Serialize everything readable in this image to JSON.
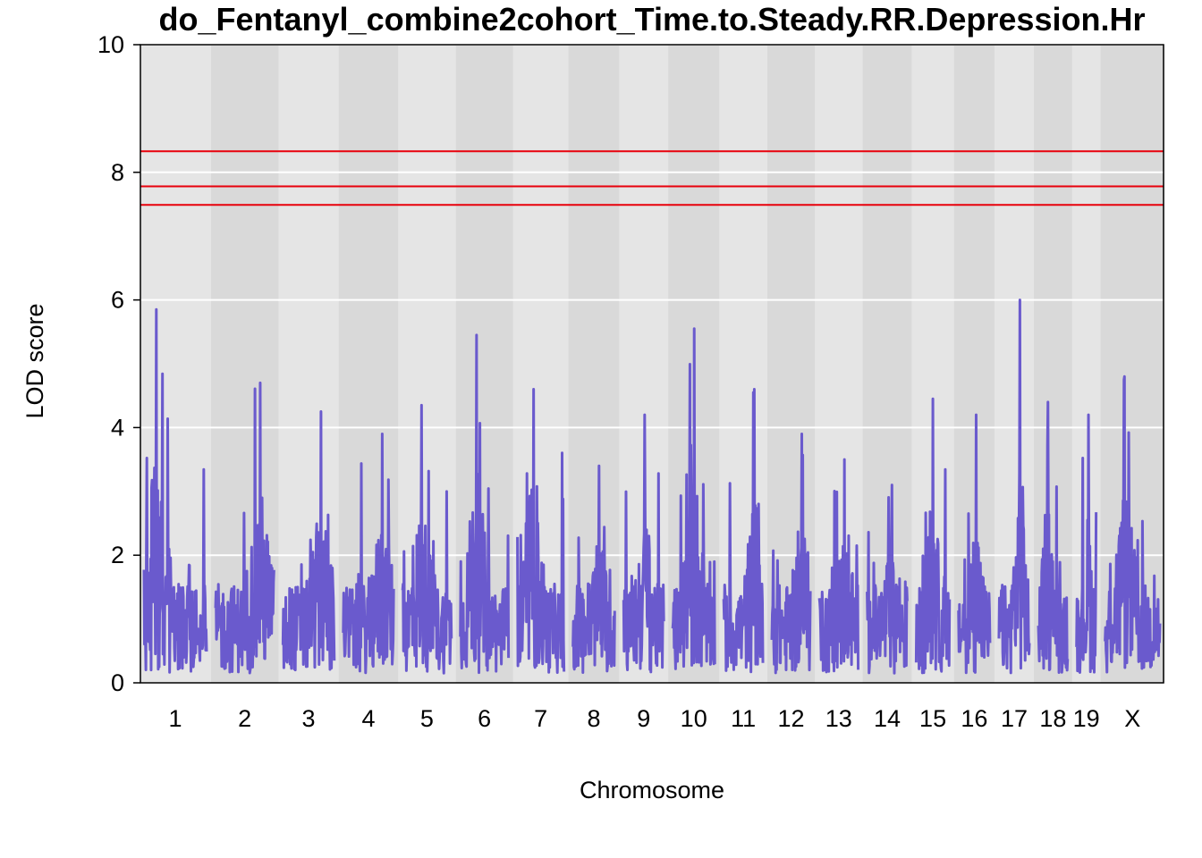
{
  "chart_data": {
    "type": "line",
    "title": "do_Fentanyl_combine2cohort_Time.to.Steady.RR.Depression.Hr",
    "xlabel": "Chromosome",
    "ylabel": "LOD score",
    "ylim": [
      0,
      10
    ],
    "yticks": [
      0,
      2,
      4,
      6,
      8,
      10
    ],
    "grid": true,
    "series_color": "#6A5ACD",
    "threshold_color": "#E8000B",
    "band_colors": [
      "#E5E5E5",
      "#D9D9D9"
    ],
    "thresholds": [
      8.33,
      7.78,
      7.49
    ],
    "chromosomes": [
      {
        "label": "1",
        "peak": 5.85,
        "length": 195
      },
      {
        "label": "2",
        "peak": 4.7,
        "length": 182
      },
      {
        "label": "3",
        "peak": 4.25,
        "length": 160
      },
      {
        "label": "4",
        "peak": 3.9,
        "length": 157
      },
      {
        "label": "5",
        "peak": 4.35,
        "length": 152
      },
      {
        "label": "6",
        "peak": 5.45,
        "length": 150
      },
      {
        "label": "7",
        "peak": 4.6,
        "length": 145
      },
      {
        "label": "8",
        "peak": 3.4,
        "length": 130
      },
      {
        "label": "9",
        "peak": 4.2,
        "length": 125
      },
      {
        "label": "10",
        "peak": 5.55,
        "length": 131
      },
      {
        "label": "11",
        "peak": 4.6,
        "length": 122
      },
      {
        "label": "12",
        "peak": 3.9,
        "length": 120
      },
      {
        "label": "13",
        "peak": 3.5,
        "length": 121
      },
      {
        "label": "14",
        "peak": 3.1,
        "length": 125
      },
      {
        "label": "15",
        "peak": 4.45,
        "length": 104
      },
      {
        "label": "16",
        "peak": 4.2,
        "length": 98
      },
      {
        "label": "17",
        "peak": 6.0,
        "length": 95
      },
      {
        "label": "18",
        "peak": 4.4,
        "length": 91
      },
      {
        "label": "19",
        "peak": 4.2,
        "length": 61
      },
      {
        "label": "X",
        "peak": 4.8,
        "length": 171
      }
    ]
  }
}
